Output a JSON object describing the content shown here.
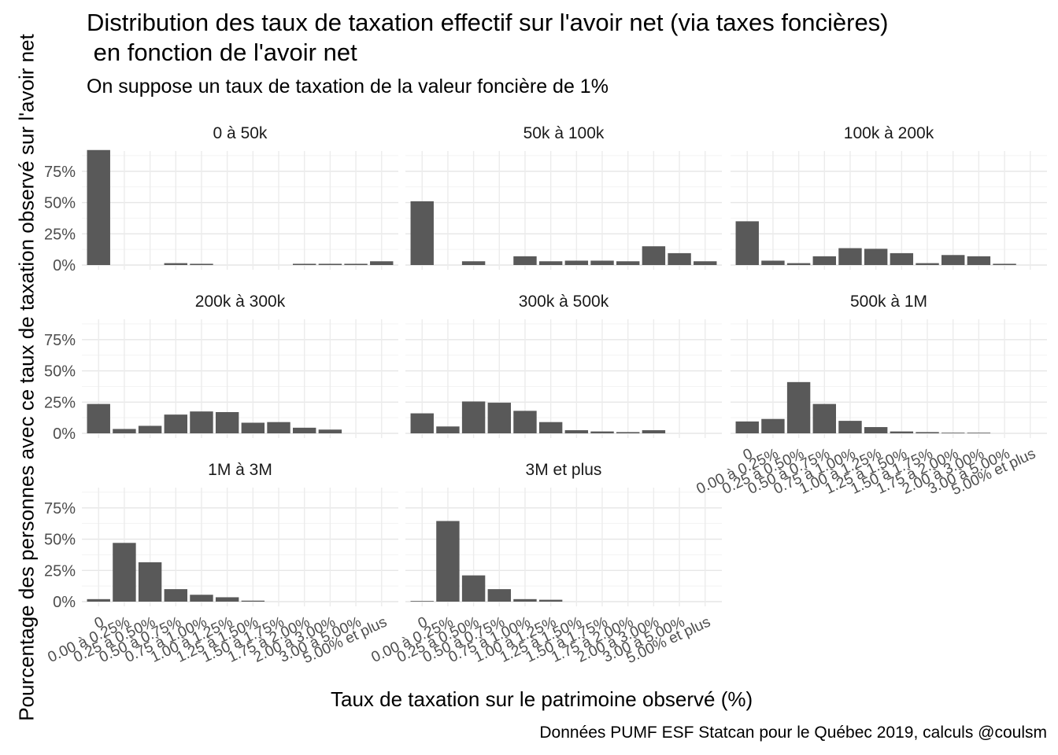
{
  "chart_data": {
    "type": "bar",
    "title": "Distribution des taux de taxation effectif sur l'avoir net (via taxes foncières)\n en fonction de l'avoir net",
    "subtitle": "On suppose un taux de taxation de la valeur foncière de 1%",
    "xlabel": "Taux de taxation sur le patrimoine observé (%)",
    "ylabel": "Pourcentage des personnes avec ce taux de taxation observé sur l'avoir net",
    "caption": "Données PUMF ESF Statcan pour le Québec 2019, calculs @coulsm",
    "ylim": [
      0,
      95
    ],
    "yticks": [
      "0%",
      "25%",
      "50%",
      "75%"
    ],
    "categories": [
      "0",
      "0.00 à 0.25%",
      "0.25 à 0.50%",
      "0.50 à 0.75%",
      "0.75 à 1.00%",
      "1.00 à 1.25%",
      "1.25 à 1.50%",
      "1.50 à 1.75%",
      "1.75 à 2.00%",
      "2.00 à 3.00%",
      "3.00 à 5.00%",
      "5.00% et plus"
    ],
    "grid": true,
    "facets": [
      {
        "label": "0 à 50k",
        "values": [
          92,
          0,
          0,
          1.5,
          1,
          0,
          0,
          0,
          1,
          1,
          1,
          3
        ]
      },
      {
        "label": "50k à 100k",
        "values": [
          51,
          0,
          3,
          0,
          7,
          3,
          3.5,
          3.5,
          3,
          15,
          9.5,
          3
        ]
      },
      {
        "label": "100k à 200k",
        "values": [
          35,
          3.5,
          1.5,
          7,
          13.5,
          13,
          9.5,
          1.5,
          8,
          7,
          1,
          0
        ]
      },
      {
        "label": "200k à 300k",
        "values": [
          23.5,
          3.5,
          6,
          15,
          17.5,
          17,
          8.5,
          9,
          4.5,
          3,
          0,
          0
        ]
      },
      {
        "label": "300k à 500k",
        "values": [
          16,
          5.5,
          25.5,
          24.5,
          18,
          9,
          2.5,
          1.5,
          1,
          2.5,
          0,
          0
        ]
      },
      {
        "label": "500k à 1M",
        "values": [
          9.5,
          11.5,
          41,
          23.5,
          10,
          5,
          1.5,
          1,
          0.5,
          0.5,
          0,
          0
        ]
      },
      {
        "label": "1M à 3M",
        "values": [
          2,
          47,
          31.5,
          10,
          5.5,
          3.5,
          0.8,
          0,
          0,
          0,
          0,
          0
        ]
      },
      {
        "label": "3M et plus",
        "values": [
          0.5,
          64.5,
          21,
          10,
          2,
          1.5,
          0,
          0,
          0,
          0,
          0,
          0
        ]
      }
    ]
  }
}
